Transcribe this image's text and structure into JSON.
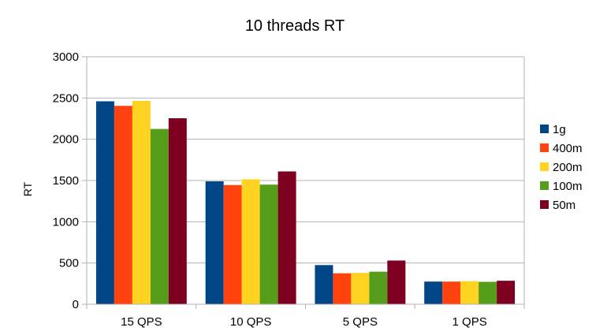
{
  "chart_data": {
    "type": "bar",
    "title": "10 threads RT",
    "xlabel": "",
    "ylabel": "RT",
    "ylim": [
      0,
      3000
    ],
    "yticks": [
      0,
      500,
      1000,
      1500,
      2000,
      2500,
      3000
    ],
    "grid": true,
    "legend_position": "right",
    "categories": [
      "15 QPS",
      "10 QPS",
      "5 QPS",
      "1 QPS"
    ],
    "series": [
      {
        "name": "1g",
        "color": "#004586",
        "values": [
          2460,
          1490,
          475,
          275
        ]
      },
      {
        "name": "400m",
        "color": "#ff420e",
        "values": [
          2405,
          1445,
          375,
          275
        ]
      },
      {
        "name": "200m",
        "color": "#ffd320",
        "values": [
          2465,
          1515,
          380,
          280
        ]
      },
      {
        "name": "100m",
        "color": "#579d1c",
        "values": [
          2125,
          1450,
          395,
          272
        ]
      },
      {
        "name": "50m",
        "color": "#7e0021",
        "values": [
          2255,
          1610,
          530,
          285
        ]
      }
    ]
  }
}
